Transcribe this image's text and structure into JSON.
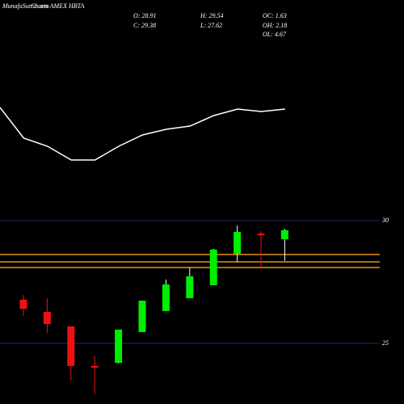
{
  "chart_data": {
    "type": "candlestick",
    "site": "MunafaSutra.com",
    "title": "Charts AMEX HBTA",
    "stats": [
      {
        "label": "O: 28.91"
      },
      {
        "label": "H: 29.54"
      },
      {
        "label": "OC: 1.63"
      },
      {
        "label": "C: 29.38"
      },
      {
        "label": "L: 27.62"
      },
      {
        "label": "OH: 2.18"
      },
      {
        "label": "OL: 4.67"
      }
    ],
    "open": [
      26.78,
      26.28,
      25.69,
      24.08,
      24.21,
      25.46,
      26.32,
      26.84,
      27.37,
      28.65,
      29.47,
      29.24
    ],
    "close": [
      26.41,
      25.79,
      24.08,
      24.01,
      25.56,
      26.74,
      27.4,
      27.73,
      28.82,
      29.54,
      29.41,
      29.61
    ],
    "high": [
      26.97,
      26.84,
      25.69,
      24.47,
      25.56,
      26.74,
      27.6,
      28.09,
      28.85,
      29.8,
      29.57,
      29.67
    ],
    "low": [
      26.12,
      25.43,
      23.49,
      22.93,
      24.18,
      25.46,
      26.32,
      26.84,
      27.37,
      28.32,
      28.03,
      28.36
    ],
    "up_color": "#00ee00",
    "down_color": "#ee1111",
    "ylim": [
      22.53,
      30.43
    ],
    "yticks": [
      30,
      25
    ],
    "levels": [
      28.62,
      28.32,
      28.09
    ],
    "level_color": "#e8901a",
    "line": {
      "values": [
        77,
        39,
        29,
        12,
        12,
        29,
        43,
        50,
        54,
        67,
        75,
        72,
        75
      ],
      "ylim": [
        0,
        110
      ],
      "color": "#ffffff"
    }
  }
}
